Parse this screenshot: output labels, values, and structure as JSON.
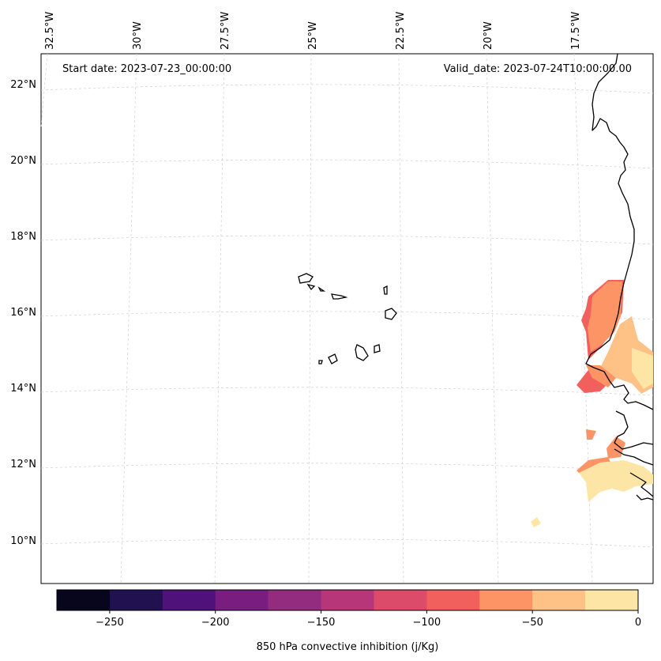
{
  "map": {
    "start_date": "Start date: 2023-07-23_00:00:00",
    "valid_date": "Valid_date: 2023-07-24T10:00:00.00",
    "lon_labels": [
      "32.5°W",
      "30°W",
      "27.5°W",
      "25°W",
      "22.5°W",
      "20°W",
      "17.5°W"
    ],
    "lat_labels": [
      "22°N",
      "20°N",
      "18°N",
      "16°N",
      "14°N",
      "12°N",
      "10°N"
    ]
  },
  "colorbar": {
    "label": "850 hPa convective inhibition (j/Kg)",
    "ticks": [
      "−250",
      "−200",
      "−150",
      "−100",
      "−50",
      "0"
    ],
    "bins": [
      -275,
      -250,
      -225,
      -200,
      -175,
      -150,
      -125,
      -100,
      -75,
      -50,
      -25,
      0
    ],
    "colors": [
      "#07061c",
      "#221150",
      "#4f127b",
      "#7a1d80",
      "#932b7f",
      "#b63679",
      "#dc4b6a",
      "#f1605c",
      "#fd9466",
      "#fec287",
      "#fde6a5"
    ]
  }
}
